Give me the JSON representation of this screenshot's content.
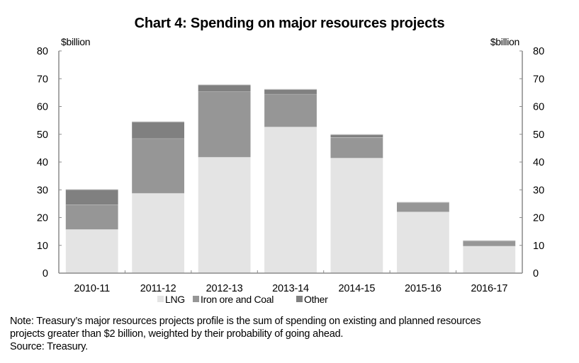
{
  "chart_data": {
    "type": "bar",
    "stacked": true,
    "title": "Chart 4: Spending on major resources projects",
    "xlabel": "",
    "ylabel": "$billion",
    "ylabel_right": "$billion",
    "ylim": [
      0,
      80
    ],
    "yticks": [
      0,
      10,
      20,
      30,
      40,
      50,
      60,
      70,
      80
    ],
    "grid": false,
    "legend_position": "bottom",
    "categories": [
      "2010-11",
      "2011-12",
      "2012-13",
      "2013-14",
      "2014-15",
      "2015-16",
      "2016-17"
    ],
    "series": [
      {
        "name": "LNG",
        "color": "#e4e4e4",
        "values": [
          15.8,
          28.8,
          41.8,
          52.7,
          41.5,
          22.1,
          9.8
        ]
      },
      {
        "name": "Iron ore and Coal",
        "color": "#969696",
        "values": [
          8.9,
          19.7,
          23.6,
          11.8,
          7.4,
          3.4,
          1.9
        ]
      },
      {
        "name": "Other",
        "color": "#808080",
        "values": [
          5.4,
          6.0,
          2.4,
          1.7,
          1.0,
          0.0,
          0.0
        ]
      }
    ]
  },
  "notes": {
    "note_line1": "Note: Treasury’s major resources projects profile is the sum of spending on existing and planned resources",
    "note_line2": "projects greater than $2 billion, weighted by their probability of going ahead.",
    "source": "Source: Treasury."
  }
}
